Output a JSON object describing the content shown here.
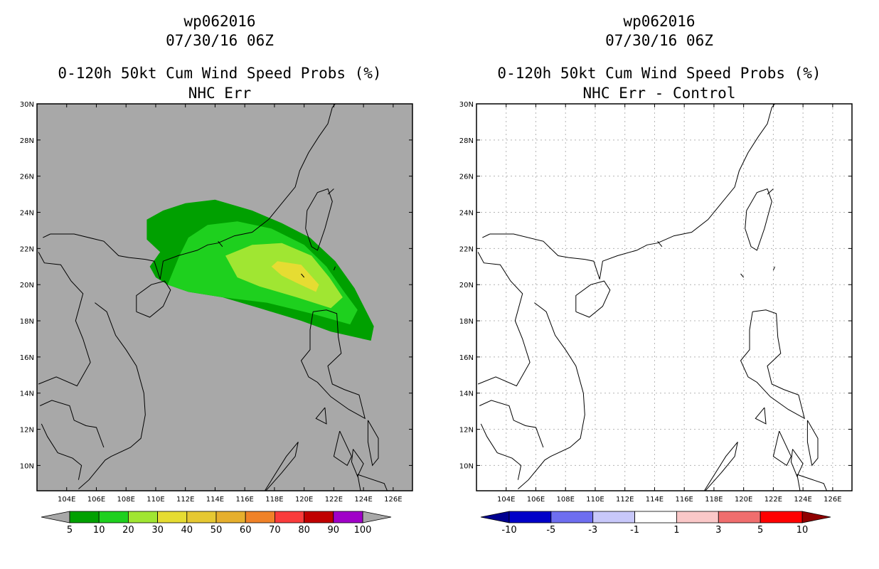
{
  "chart_data": [
    {
      "type": "heatmap",
      "title": [
        "wp062016",
        "07/30/16 06Z",
        "0-120h 50kt Cum Wind Speed Probs (%)",
        "NHC Err"
      ],
      "x_ticks": [
        "104E",
        "106E",
        "108E",
        "110E",
        "112E",
        "114E",
        "116E",
        "118E",
        "120E",
        "122E",
        "124E",
        "126E"
      ],
      "y_ticks": [
        "30N",
        "28N",
        "26N",
        "24N",
        "22N",
        "20N",
        "18N",
        "16N",
        "14N",
        "12N",
        "10N"
      ],
      "xlim": [
        102.0,
        127.3
      ],
      "ylim": [
        8.6,
        30.0
      ],
      "background": "#a8a8a8",
      "contours": [
        {
          "level": 5,
          "color": "#00a000",
          "points": [
            [
              110.0,
              20.4
            ],
            [
              109.6,
              21.0
            ],
            [
              110.3,
              21.8
            ],
            [
              109.4,
              22.5
            ],
            [
              109.4,
              23.6
            ],
            [
              110.5,
              24.1
            ],
            [
              112.0,
              24.5
            ],
            [
              114.0,
              24.7
            ],
            [
              116.5,
              24.1
            ],
            [
              118.5,
              23.4
            ],
            [
              120.4,
              22.6
            ],
            [
              122.1,
              21.3
            ],
            [
              123.4,
              19.8
            ],
            [
              124.2,
              18.5
            ],
            [
              124.7,
              17.7
            ],
            [
              124.5,
              16.9
            ],
            [
              121.8,
              17.4
            ],
            [
              119.8,
              18.0
            ],
            [
              117.0,
              18.7
            ],
            [
              114.5,
              19.3
            ],
            [
              112.2,
              19.6
            ],
            [
              110.8,
              20.0
            ]
          ]
        },
        {
          "level": 10,
          "color": "#1ed01e",
          "points": [
            [
              110.8,
              20.0
            ],
            [
              111.6,
              21.6
            ],
            [
              112.2,
              22.6
            ],
            [
              113.5,
              23.3
            ],
            [
              115.5,
              23.5
            ],
            [
              117.8,
              23.1
            ],
            [
              120.0,
              22.2
            ],
            [
              121.5,
              21.0
            ],
            [
              122.7,
              19.6
            ],
            [
              123.6,
              18.6
            ],
            [
              123.1,
              17.8
            ],
            [
              120.5,
              18.4
            ],
            [
              117.5,
              19.0
            ],
            [
              114.5,
              19.3
            ],
            [
              112.2,
              19.6
            ]
          ]
        },
        {
          "level": 20,
          "color": "#a0e632",
          "points": [
            [
              114.7,
              21.6
            ],
            [
              116.5,
              22.2
            ],
            [
              118.5,
              22.3
            ],
            [
              120.5,
              21.6
            ],
            [
              121.7,
              20.4
            ],
            [
              122.6,
              19.3
            ],
            [
              121.8,
              18.7
            ],
            [
              119.5,
              19.3
            ],
            [
              117.0,
              19.9
            ],
            [
              115.5,
              20.4
            ]
          ]
        },
        {
          "level": 30,
          "color": "#e6dc32",
          "points": [
            [
              118.2,
              21.3
            ],
            [
              119.8,
              21.1
            ],
            [
              121.0,
              20.0
            ],
            [
              120.8,
              19.6
            ],
            [
              119.5,
              20.1
            ],
            [
              118.5,
              20.5
            ],
            [
              117.8,
              21.0
            ]
          ]
        }
      ],
      "colorbar": {
        "labels": [
          "5",
          "10",
          "20",
          "30",
          "40",
          "50",
          "60",
          "70",
          "80",
          "90",
          "100"
        ],
        "colors": [
          "#00a000",
          "#1ed01e",
          "#a0e632",
          "#e6dc32",
          "#e6c832",
          "#e6af2d",
          "#f08228",
          "#fa3c3c",
          "#c00000",
          "#a000c8"
        ]
      }
    },
    {
      "type": "heatmap",
      "title": [
        "wp062016",
        "07/30/16 06Z",
        "0-120h 50kt Cum Wind Speed Probs (%)",
        "NHC Err - Control"
      ],
      "x_ticks": [
        "104E",
        "106E",
        "108E",
        "110E",
        "112E",
        "114E",
        "116E",
        "118E",
        "120E",
        "122E",
        "124E",
        "126E"
      ],
      "y_ticks": [
        "30N",
        "28N",
        "26N",
        "24N",
        "22N",
        "20N",
        "18N",
        "16N",
        "14N",
        "12N",
        "10N"
      ],
      "xlim": [
        102.0,
        127.3
      ],
      "ylim": [
        8.6,
        30.0
      ],
      "background": "#ffffff",
      "grid": true,
      "contours": [],
      "colorbar": {
        "labels": [
          "-10",
          "-5",
          "-3",
          "-1",
          "1",
          "3",
          "5",
          "10"
        ],
        "colors": [
          "#0000c8",
          "#6e6ef0",
          "#c8c8fa",
          "#ffffff",
          "#fac8c8",
          "#f06e6e",
          "#ff0000"
        ],
        "end_colors": [
          "#000090",
          "#900000"
        ]
      }
    }
  ],
  "coastlines": [
    [
      [
        102.9,
        22.8
      ],
      [
        104.5,
        22.8
      ],
      [
        106.5,
        22.4
      ],
      [
        107.5,
        21.6
      ],
      [
        108.2,
        21.5
      ],
      [
        109.3,
        21.4
      ],
      [
        109.9,
        21.3
      ],
      [
        110.3,
        20.3
      ],
      [
        110.5,
        21.3
      ],
      [
        111.5,
        21.6
      ],
      [
        112.8,
        21.9
      ],
      [
        113.5,
        22.2
      ],
      [
        114.2,
        22.3
      ],
      [
        115.3,
        22.7
      ],
      [
        116.5,
        22.9
      ],
      [
        117.6,
        23.6
      ],
      [
        118.5,
        24.5
      ],
      [
        119.4,
        25.4
      ],
      [
        119.7,
        26.3
      ],
      [
        120.3,
        27.3
      ],
      [
        121.0,
        28.2
      ],
      [
        121.6,
        28.9
      ],
      [
        121.9,
        29.8
      ],
      [
        122.1,
        30.0
      ]
    ],
    [
      [
        105.9,
        19.0
      ],
      [
        106.7,
        18.5
      ],
      [
        107.3,
        17.2
      ],
      [
        108.0,
        16.4
      ],
      [
        108.7,
        15.5
      ],
      [
        109.2,
        14.0
      ],
      [
        109.3,
        12.8
      ],
      [
        109.0,
        11.5
      ],
      [
        108.3,
        11.0
      ],
      [
        107.0,
        10.5
      ],
      [
        106.6,
        10.3
      ],
      [
        105.5,
        9.2
      ],
      [
        104.8,
        8.7
      ]
    ],
    [
      [
        102.3,
        12.3
      ],
      [
        102.7,
        11.6
      ],
      [
        103.4,
        10.7
      ],
      [
        104.4,
        10.4
      ],
      [
        105.0,
        10.0
      ],
      [
        104.8,
        9.2
      ]
    ],
    [
      [
        102.2,
        13.3
      ],
      [
        103.0,
        13.6
      ],
      [
        104.2,
        13.3
      ],
      [
        104.5,
        12.5
      ],
      [
        105.3,
        12.2
      ],
      [
        106.0,
        12.1
      ],
      [
        106.5,
        11.0
      ]
    ],
    [
      [
        102.1,
        14.5
      ],
      [
        103.3,
        14.9
      ],
      [
        104.7,
        14.4
      ],
      [
        105.6,
        15.7
      ],
      [
        105.1,
        17.0
      ],
      [
        104.6,
        18.0
      ],
      [
        105.1,
        19.5
      ],
      [
        104.3,
        20.2
      ],
      [
        103.6,
        21.1
      ],
      [
        102.5,
        21.2
      ],
      [
        102.1,
        21.8
      ]
    ],
    [
      [
        108.7,
        18.5
      ],
      [
        109.6,
        18.2
      ],
      [
        110.5,
        18.8
      ],
      [
        111.0,
        19.7
      ],
      [
        110.6,
        20.2
      ],
      [
        109.7,
        20.0
      ],
      [
        108.7,
        19.4
      ],
      [
        108.7,
        18.5
      ]
    ],
    [
      [
        120.1,
        23.1
      ],
      [
        120.5,
        22.1
      ],
      [
        120.9,
        21.9
      ],
      [
        121.4,
        23.1
      ],
      [
        121.9,
        24.6
      ],
      [
        121.6,
        25.3
      ],
      [
        120.9,
        25.1
      ],
      [
        120.2,
        24.1
      ],
      [
        120.1,
        23.1
      ]
    ],
    [
      [
        120.6,
        18.5
      ],
      [
        121.5,
        18.6
      ],
      [
        122.2,
        18.4
      ],
      [
        122.3,
        17.1
      ],
      [
        122.5,
        16.2
      ],
      [
        121.6,
        15.5
      ],
      [
        121.9,
        14.5
      ],
      [
        122.7,
        14.2
      ],
      [
        123.7,
        13.9
      ],
      [
        124.1,
        12.6
      ],
      [
        123.0,
        13.1
      ],
      [
        121.8,
        13.8
      ],
      [
        120.9,
        14.6
      ],
      [
        120.3,
        14.9
      ],
      [
        119.8,
        15.8
      ],
      [
        120.4,
        16.4
      ],
      [
        120.4,
        17.5
      ],
      [
        120.6,
        18.5
      ]
    ],
    [
      [
        124.3,
        12.5
      ],
      [
        125.0,
        11.5
      ],
      [
        125.0,
        10.4
      ],
      [
        124.6,
        10.0
      ],
      [
        124.3,
        11.3
      ],
      [
        124.3,
        12.5
      ]
    ],
    [
      [
        122.4,
        11.9
      ],
      [
        123.2,
        10.5
      ],
      [
        122.9,
        10.0
      ],
      [
        122.0,
        10.5
      ],
      [
        122.4,
        11.9
      ]
    ],
    [
      [
        123.3,
        10.9
      ],
      [
        124.0,
        10.1
      ],
      [
        123.6,
        9.4
      ],
      [
        123.2,
        10.2
      ],
      [
        123.3,
        10.9
      ]
    ],
    [
      [
        121.4,
        13.2
      ],
      [
        121.5,
        12.3
      ],
      [
        120.8,
        12.6
      ],
      [
        121.4,
        13.2
      ]
    ],
    [
      [
        117.2,
        8.4
      ],
      [
        118.5,
        9.6
      ],
      [
        119.4,
        10.5
      ],
      [
        119.6,
        11.3
      ],
      [
        118.8,
        10.5
      ],
      [
        117.2,
        8.4
      ]
    ],
    [
      [
        123.6,
        9.5
      ],
      [
        125.4,
        9.0
      ],
      [
        125.6,
        8.6
      ],
      [
        123.8,
        8.6
      ],
      [
        123.6,
        9.5
      ]
    ],
    [
      [
        119.8,
        20.6
      ],
      [
        120.0,
        20.4
      ]
    ],
    [
      [
        122.0,
        20.8
      ],
      [
        122.1,
        21.0
      ]
    ],
    [
      [
        114.2,
        22.4
      ],
      [
        114.5,
        22.1
      ]
    ],
    [
      [
        121.6,
        25.0
      ],
      [
        122.0,
        25.3
      ]
    ],
    [
      [
        102.9,
        22.8
      ],
      [
        102.4,
        22.6
      ]
    ]
  ]
}
